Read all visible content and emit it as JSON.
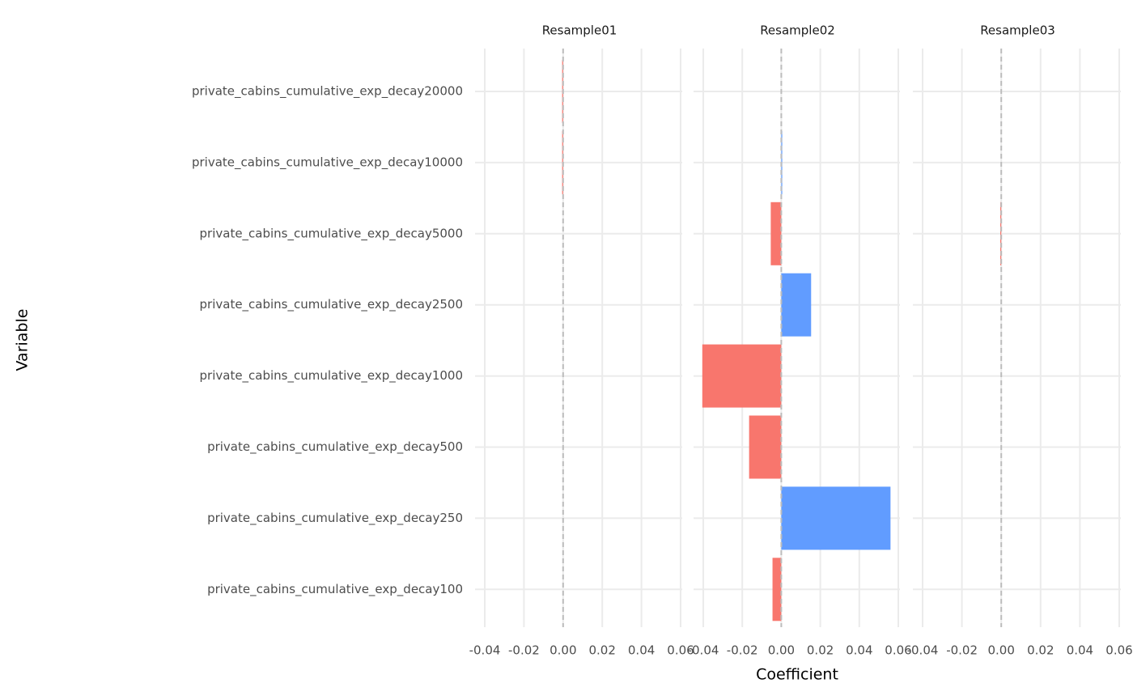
{
  "chart_data": {
    "type": "bar",
    "orientation": "horizontal",
    "x_label": "Coefficient",
    "y_label": "Variable",
    "categories": [
      "private_cabins_cumulative_exp_decay20000",
      "private_cabins_cumulative_exp_decay10000",
      "private_cabins_cumulative_exp_decay5000",
      "private_cabins_cumulative_exp_decay2500",
      "private_cabins_cumulative_exp_decay1000",
      "private_cabins_cumulative_exp_decay500",
      "private_cabins_cumulative_exp_decay250",
      "private_cabins_cumulative_exp_decay100"
    ],
    "facets": [
      {
        "title": "Resample01",
        "values": [
          -0.0003,
          -0.0003,
          0,
          0,
          0,
          0,
          0,
          0
        ]
      },
      {
        "title": "Resample02",
        "values": [
          0,
          0.0003,
          -0.0054,
          0.0153,
          -0.0405,
          -0.0165,
          0.056,
          -0.0045
        ]
      },
      {
        "title": "Resample03",
        "values": [
          0,
          0,
          -0.0003,
          0,
          0,
          0,
          0,
          0
        ]
      }
    ],
    "negative_color": "#f8766d",
    "positive_color": "#619cff",
    "zero_line": {
      "value": 0,
      "color": "#bdbdbd"
    },
    "xlim": [
      -0.04,
      0.06
    ],
    "xticks": [
      -0.04,
      -0.02,
      {
        "value": 0,
        "label": "0.00"
      },
      0.02,
      0.04,
      0.06
    ],
    "grid": true
  }
}
